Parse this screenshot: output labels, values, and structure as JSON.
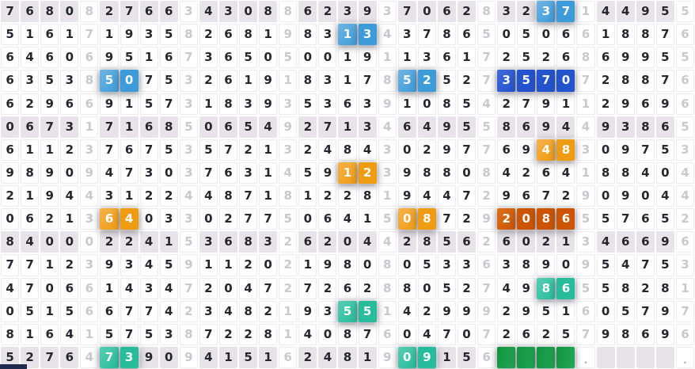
{
  "grid": {
    "columns": 35,
    "rows": 16,
    "light_column_every": 5,
    "stripe_rows": [
      1,
      6,
      11,
      16
    ],
    "empty_char": "_",
    "row_strings": [
      "76808276634308862393706283237144955",
      "51617193582681983134378650506618876",
      "64606951673650500191136172526869955",
      "63538507532619183178525273570728876",
      "62966915731839353639108542791129696",
      "06731716850654927134649558694493865",
      "61123767535721324843029776948309753",
      "98909473037631459123988084264188404",
      "21944312244871812281944729672909044",
      "06213640330277506415087292086557652",
      "84000224153683262044285626021346696",
      "77123934591120219808053363890954753",
      "47066143472047272628805274986558281",
      "05156677423482193551429992951605797",
      "81641575387228140876047072625798696",
      "5276473909415162481909156____.____."
    ]
  },
  "highlights": [
    {
      "row": 1,
      "cols": [
        28,
        29
      ],
      "type": "pair_blue",
      "values": "3,7"
    },
    {
      "row": 2,
      "cols": [
        18,
        19
      ],
      "type": "pair_blue",
      "values": "1,3"
    },
    {
      "row": 4,
      "cols": [
        6,
        7
      ],
      "type": "pair_blue",
      "values": "5,0"
    },
    {
      "row": 4,
      "cols": [
        21,
        22
      ],
      "type": "pair_blue",
      "values": "5,2"
    },
    {
      "row": 4,
      "cols": [
        26,
        27,
        28,
        29
      ],
      "type": "quad_blue",
      "values": "3,5,7,0"
    },
    {
      "row": 7,
      "cols": [
        28,
        29
      ],
      "type": "pair_orange",
      "values": "4,8"
    },
    {
      "row": 8,
      "cols": [
        18,
        19
      ],
      "type": "pair_orange",
      "values": "1,2"
    },
    {
      "row": 10,
      "cols": [
        6,
        7
      ],
      "type": "pair_orange",
      "values": "6,4"
    },
    {
      "row": 10,
      "cols": [
        21,
        22
      ],
      "type": "pair_orange",
      "values": "0,8"
    },
    {
      "row": 10,
      "cols": [
        26,
        27,
        28,
        29
      ],
      "type": "quad_orange",
      "values": "2,0,8,6"
    },
    {
      "row": 13,
      "cols": [
        28,
        29
      ],
      "type": "pair_teal",
      "values": "8,6"
    },
    {
      "row": 14,
      "cols": [
        18,
        19
      ],
      "type": "pair_teal",
      "values": "5,5"
    },
    {
      "row": 16,
      "cols": [
        6,
        7
      ],
      "type": "pair_teal",
      "values": "7,3"
    },
    {
      "row": 16,
      "cols": [
        21,
        22
      ],
      "type": "pair_teal",
      "values": "0,9"
    },
    {
      "row": 16,
      "cols": [
        26,
        27,
        28,
        29
      ],
      "type": "quad_green",
      "values": ""
    }
  ],
  "colors": {
    "pair_blue": "#3d9bd9",
    "pair_blue_light": "#70b5e3",
    "quad_blue": "#2453ce",
    "quad_blue_light": "#4168d8",
    "pair_orange": "#f09c13",
    "pair_orange_light": "#f5b24a",
    "quad_orange": "#cd5502",
    "quad_orange_light": "#dd701d",
    "pair_teal": "#27bd9c",
    "pair_teal_light": "#57ccb4",
    "quad_green": "#12933f",
    "quad_green_light": "#21a854",
    "stripe_bg": "#e7e3e8",
    "cell_bg": "#ffffff",
    "digit_dark": "#26262e",
    "digit_light": "#c9c8cf",
    "dot_color": "#b3b1b8",
    "footer_bar": "#1e2a4e"
  }
}
